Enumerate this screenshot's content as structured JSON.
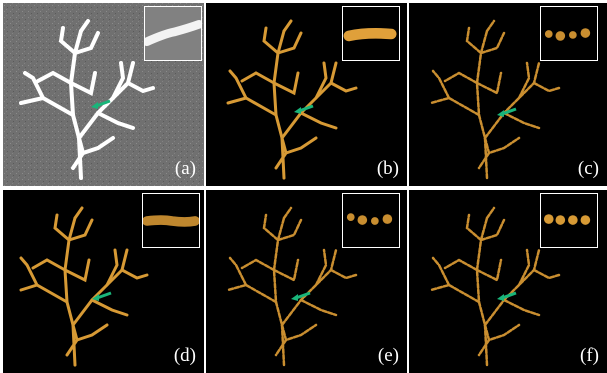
{
  "figure": {
    "panels": [
      {
        "label": "(a)",
        "style": "raw"
      },
      {
        "label": "(b)",
        "style": "rendered"
      },
      {
        "label": "(c)",
        "style": "dotted"
      },
      {
        "label": "(d)",
        "style": "rendered"
      },
      {
        "label": "(e)",
        "style": "dotted"
      },
      {
        "label": "(f)",
        "style": "dotted"
      }
    ],
    "colors": {
      "raw_background": "#6f6f6f",
      "dark_background": "#000000",
      "raw_tree": "#ffffff",
      "gold_tree": "#d79a35",
      "arrow": "#19b57a",
      "inset_border": "#ffffff"
    }
  }
}
